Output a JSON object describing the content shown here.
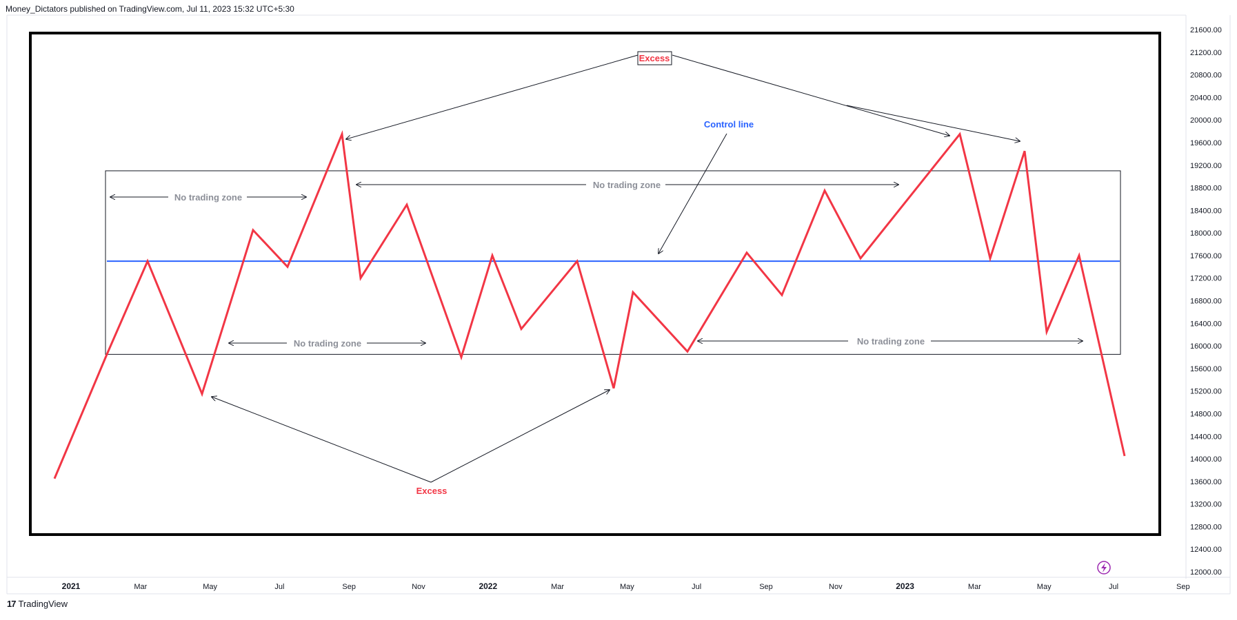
{
  "header": {
    "attribution": "Money_Dictators published on TradingView.com, Jul 11, 2023 15:32 UTC+5:30"
  },
  "footer": {
    "brand": "TradingView",
    "logo_glyph": "17"
  },
  "colors": {
    "price_line": "#f23645",
    "control_line": "#2962ff",
    "annotation_gray": "#8c8f98",
    "frame": "#000000"
  },
  "chart_data": {
    "type": "line",
    "title": "",
    "xlabel": "",
    "ylabel": "",
    "ylim": [
      12000,
      21600
    ],
    "y_ticks": [
      "21600.00",
      "21200.00",
      "20800.00",
      "20400.00",
      "20000.00",
      "19600.00",
      "19200.00",
      "18800.00",
      "18400.00",
      "18000.00",
      "17600.00",
      "17200.00",
      "16800.00",
      "16400.00",
      "16000.00",
      "15600.00",
      "15200.00",
      "14800.00",
      "14400.00",
      "14000.00",
      "13600.00",
      "13200.00",
      "12800.00",
      "12400.00",
      "12000.00"
    ],
    "x_ticks": [
      {
        "label": "2021",
        "year": true
      },
      {
        "label": "Mar",
        "year": false
      },
      {
        "label": "May",
        "year": false
      },
      {
        "label": "Jul",
        "year": false
      },
      {
        "label": "Sep",
        "year": false
      },
      {
        "label": "Nov",
        "year": false
      },
      {
        "label": "2022",
        "year": true
      },
      {
        "label": "Mar",
        "year": false
      },
      {
        "label": "May",
        "year": false
      },
      {
        "label": "Jul",
        "year": false
      },
      {
        "label": "Sep",
        "year": false
      },
      {
        "label": "Nov",
        "year": false
      },
      {
        "label": "2023",
        "year": true
      },
      {
        "label": "Mar",
        "year": false
      },
      {
        "label": "May",
        "year": false
      },
      {
        "label": "Jul",
        "year": false
      },
      {
        "label": "Sep",
        "year": false
      }
    ],
    "series": [
      {
        "values": [
          {
            "x": "2020-12",
            "y": 13650
          },
          {
            "x": "2021-02",
            "y": 15850
          },
          {
            "x": "2021-03",
            "y": 17500
          },
          {
            "x": "2021-05",
            "y": 15150
          },
          {
            "x": "2021-06",
            "y": 18050
          },
          {
            "x": "2021-07",
            "y": 17400
          },
          {
            "x": "2021-08",
            "y": 19750
          },
          {
            "x": "2021-09",
            "y": 17200
          },
          {
            "x": "2021-10",
            "y": 18500
          },
          {
            "x": "2021-12",
            "y": 15800
          },
          {
            "x": "2022-01",
            "y": 17600
          },
          {
            "x": "2022-02",
            "y": 16300
          },
          {
            "x": "2022-04",
            "y": 17500
          },
          {
            "x": "2022-05",
            "y": 15250
          },
          {
            "x": "2022-05b",
            "y": 16950
          },
          {
            "x": "2022-06",
            "y": 15900
          },
          {
            "x": "2022-08",
            "y": 17650
          },
          {
            "x": "2022-09",
            "y": 16900
          },
          {
            "x": "2022-11",
            "y": 18750
          },
          {
            "x": "2022-12",
            "y": 17550
          },
          {
            "x": "2023-02",
            "y": 19750
          },
          {
            "x": "2023-03",
            "y": 17550
          },
          {
            "x": "2023-04",
            "y": 19450
          },
          {
            "x": "2023-05",
            "y": 16250
          },
          {
            "x": "2023-06",
            "y": 17600
          },
          {
            "x": "2023-07",
            "y": 14050
          }
        ]
      }
    ],
    "control_line_value": 17500,
    "range_box": {
      "top": 19100,
      "bottom": 15850
    },
    "annotations": {
      "excess_top": "Excess",
      "excess_bottom": "Excess",
      "control_line": "Control line",
      "no_trade_1": "No trading zone",
      "no_trade_2": "No trading zone",
      "no_trade_3": "No trading zone",
      "no_trade_4": "No trading zone"
    }
  }
}
